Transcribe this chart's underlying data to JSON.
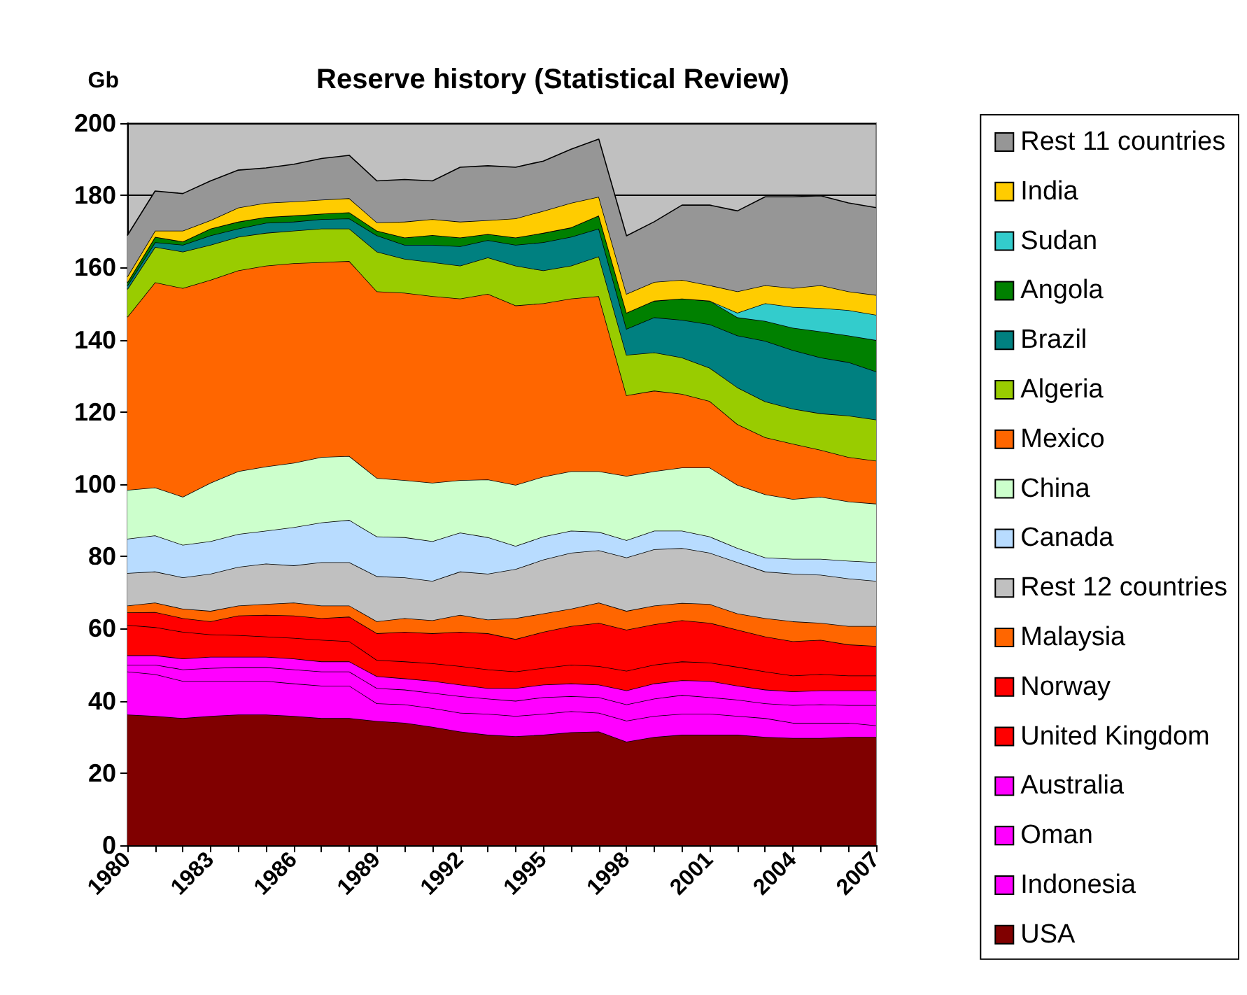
{
  "chart_data": {
    "type": "area",
    "stacked": true,
    "title": "Reserve history (Statistical Review)",
    "ylabel": "Gb",
    "categories": [
      "1980",
      null,
      null,
      "1983",
      null,
      null,
      "1986",
      null,
      null,
      "1989",
      null,
      null,
      "1992",
      null,
      null,
      "1995",
      null,
      null,
      "1998",
      null,
      null,
      "2001",
      null,
      null,
      "2004",
      null,
      null,
      "2007"
    ],
    "ylim": [
      0,
      200
    ],
    "yticks": [
      0,
      20,
      40,
      60,
      80,
      100,
      120,
      140,
      160,
      180,
      200
    ],
    "grid": "y",
    "legend": "right",
    "marker": "none",
    "series": [
      {
        "name": "USA",
        "color": "#800000",
        "values": [
          36.2,
          35.8,
          35.2,
          35.8,
          36.2,
          36.2,
          35.8,
          35.2,
          35.2,
          34.4,
          33.9,
          32.8,
          31.5,
          30.6,
          30.2,
          30.6,
          31.3,
          31.5,
          28.7,
          30,
          30.6,
          30.6,
          30.6,
          30,
          29.7,
          29.7,
          30,
          30
        ]
      },
      {
        "name": "Indonesia",
        "color": "#ff00ff",
        "values": [
          11.9,
          11.6,
          10.3,
          9.7,
          9.3,
          9.3,
          9.0,
          9.0,
          9.0,
          4.9,
          5.1,
          5.2,
          5.2,
          5.8,
          5.6,
          5.8,
          5.8,
          5.2,
          5.8,
          5.8,
          5.8,
          5.8,
          5.2,
          5.2,
          4.2,
          4.2,
          3.9,
          3.2
        ]
      },
      {
        "name": "Oman",
        "color": "#ff00ff",
        "values": [
          1.9,
          2.6,
          3.2,
          3.6,
          3.8,
          3.8,
          3.9,
          3.9,
          3.9,
          4.2,
          4.1,
          4.2,
          4.6,
          4.2,
          4.2,
          4.6,
          4.2,
          4.3,
          4.5,
          4.8,
          5.2,
          4.6,
          4.5,
          4.1,
          4.9,
          5.1,
          4.9,
          5.6
        ]
      },
      {
        "name": "Australia",
        "color": "#ff00ff",
        "values": [
          2.6,
          2.6,
          3.0,
          3.1,
          2.9,
          2.9,
          3.0,
          2.8,
          2.8,
          3.3,
          3.1,
          3.3,
          3.2,
          2.9,
          3.5,
          3.5,
          3.5,
          3.5,
          3.9,
          4.2,
          4.1,
          4.5,
          3.9,
          3.8,
          3.8,
          3.9,
          4.1,
          4.1
        ]
      },
      {
        "name": "United Kingdom",
        "color": "#ff0000",
        "values": [
          8.4,
          7.8,
          7.4,
          6.2,
          6.0,
          5.6,
          5.7,
          6.0,
          5.6,
          4.5,
          4.7,
          4.9,
          5.1,
          5.2,
          4.6,
          4.6,
          5.2,
          5.1,
          5.4,
          5.2,
          5.2,
          5.1,
          5.2,
          5.0,
          4.4,
          4.5,
          4.1,
          4.1
        ]
      },
      {
        "name": "Norway",
        "color": "#ff0000",
        "values": [
          3.5,
          4.2,
          3.8,
          3.6,
          5.4,
          6.0,
          6.2,
          6.0,
          6.8,
          7.4,
          8.2,
          8.3,
          9.5,
          10.0,
          9.0,
          10.0,
          10.7,
          12.0,
          11.4,
          11.2,
          11.4,
          11.0,
          10.3,
          9.7,
          9.5,
          9.5,
          8.6,
          8.2
        ]
      },
      {
        "name": "Malaysia",
        "color": "#ff6600",
        "values": [
          1.9,
          2.6,
          2.6,
          2.9,
          2.8,
          3.0,
          3.6,
          3.5,
          3.1,
          3.3,
          3.8,
          3.6,
          4.7,
          3.8,
          5.8,
          5.1,
          4.8,
          5.6,
          5.2,
          5.2,
          4.8,
          5.2,
          4.5,
          5.1,
          5.5,
          4.7,
          5.1,
          5.5
        ]
      },
      {
        "name": "Rest 12 countries",
        "color": "#c0c0c0",
        "values": [
          9.0,
          8.6,
          8.7,
          10.3,
          10.7,
          11.2,
          10.3,
          12.0,
          12.0,
          12.5,
          11.3,
          10.9,
          12.0,
          12.7,
          13.6,
          14.9,
          15.5,
          14.5,
          14.8,
          15.6,
          15.2,
          14.2,
          14.2,
          12.9,
          13.2,
          13.3,
          13.2,
          12.5
        ]
      },
      {
        "name": "Canada",
        "color": "#b8dcff",
        "values": [
          9.5,
          10.0,
          9.0,
          9.0,
          9.1,
          9.1,
          10.6,
          11.0,
          11.7,
          11.0,
          11.1,
          11.0,
          10.8,
          10.1,
          6.4,
          6.4,
          6.1,
          5.1,
          4.8,
          5.1,
          4.8,
          4.5,
          3.9,
          3.9,
          4.1,
          4.4,
          4.9,
          5.2
        ]
      },
      {
        "name": "China",
        "color": "#ccffcc",
        "values": [
          13.5,
          13.3,
          13.3,
          16.2,
          17.4,
          17.8,
          17.8,
          18.1,
          17.7,
          16.2,
          15.8,
          16.2,
          14.5,
          16.0,
          16.9,
          16.6,
          16.5,
          16.8,
          17.8,
          16.5,
          17.5,
          19.1,
          17.5,
          17.5,
          16.6,
          17.2,
          16.4,
          16.2
        ]
      },
      {
        "name": "Mexico",
        "color": "#ff6600",
        "values": [
          47.9,
          56.8,
          57.8,
          56.2,
          55.6,
          55.6,
          55.3,
          54.0,
          54.0,
          51.7,
          51.9,
          51.7,
          50.3,
          51.4,
          49.7,
          48.0,
          47.8,
          48.5,
          22.3,
          22.3,
          20.4,
          18.4,
          16.8,
          15.8,
          15.3,
          13.0,
          12.3,
          11.9
        ]
      },
      {
        "name": "Algeria",
        "color": "#99cc00",
        "values": [
          7.7,
          9.8,
          10.1,
          9.7,
          9.3,
          9.1,
          9.0,
          9.3,
          9.0,
          11.0,
          9.4,
          9.4,
          9.1,
          10.1,
          11.0,
          9.1,
          9.1,
          11.0,
          11.2,
          10.6,
          10.1,
          9.2,
          10.2,
          9.9,
          9.7,
          10.1,
          11.5,
          11.4
        ]
      },
      {
        "name": "Brazil",
        "color": "#008080",
        "values": [
          1.0,
          1.3,
          1.9,
          2.6,
          2.3,
          2.8,
          2.5,
          2.6,
          2.8,
          4.5,
          3.9,
          4.8,
          5.4,
          4.8,
          5.8,
          7.8,
          8.0,
          7.7,
          7.2,
          9.7,
          10.4,
          12.1,
          14.4,
          16.8,
          16.2,
          15.5,
          14.8,
          13.3
        ]
      },
      {
        "name": "Angola",
        "color": "#008000",
        "values": [
          0.9,
          1.5,
          0.9,
          1.9,
          1.9,
          1.6,
          1.7,
          1.5,
          1.7,
          1.3,
          2.0,
          2.7,
          2.4,
          1.7,
          2.0,
          2.6,
          2.6,
          3.6,
          4.5,
          4.6,
          5.9,
          6.5,
          5.0,
          5.5,
          6.2,
          7.2,
          7.4,
          8.7
        ]
      },
      {
        "name": "Sudan",
        "color": "#33cccc",
        "values": [
          0,
          0,
          0,
          0,
          0,
          0,
          0,
          0,
          0,
          0,
          0,
          0,
          0,
          0,
          0,
          0,
          0,
          0,
          0,
          0,
          0,
          0,
          1.3,
          4.9,
          5.8,
          6.5,
          7.0,
          7.0
        ]
      },
      {
        "name": "India",
        "color": "#ffcc00",
        "values": [
          1.6,
          1.7,
          3.0,
          2.3,
          3.9,
          3.9,
          3.9,
          3.9,
          3.9,
          2.3,
          4.4,
          4.4,
          4.4,
          3.8,
          5.3,
          6.1,
          6.8,
          5.2,
          5.2,
          5.2,
          5.2,
          4.3,
          5.9,
          5.0,
          5.2,
          6.3,
          5.2,
          5.5
        ]
      },
      {
        "name": "Rest 11 countries",
        "color": "#969696",
        "values": [
          11.4,
          11.0,
          10.3,
          10.9,
          10.4,
          9.7,
          10.3,
          11.4,
          11.9,
          11.5,
          11.7,
          10.6,
          15.1,
          15.1,
          14.2,
          13.8,
          14.9,
          16.0,
          16.1,
          16.7,
          20.7,
          22.2,
          22.3,
          24.5,
          25.3,
          24.8,
          24.5,
          24.2
        ]
      }
    ]
  }
}
